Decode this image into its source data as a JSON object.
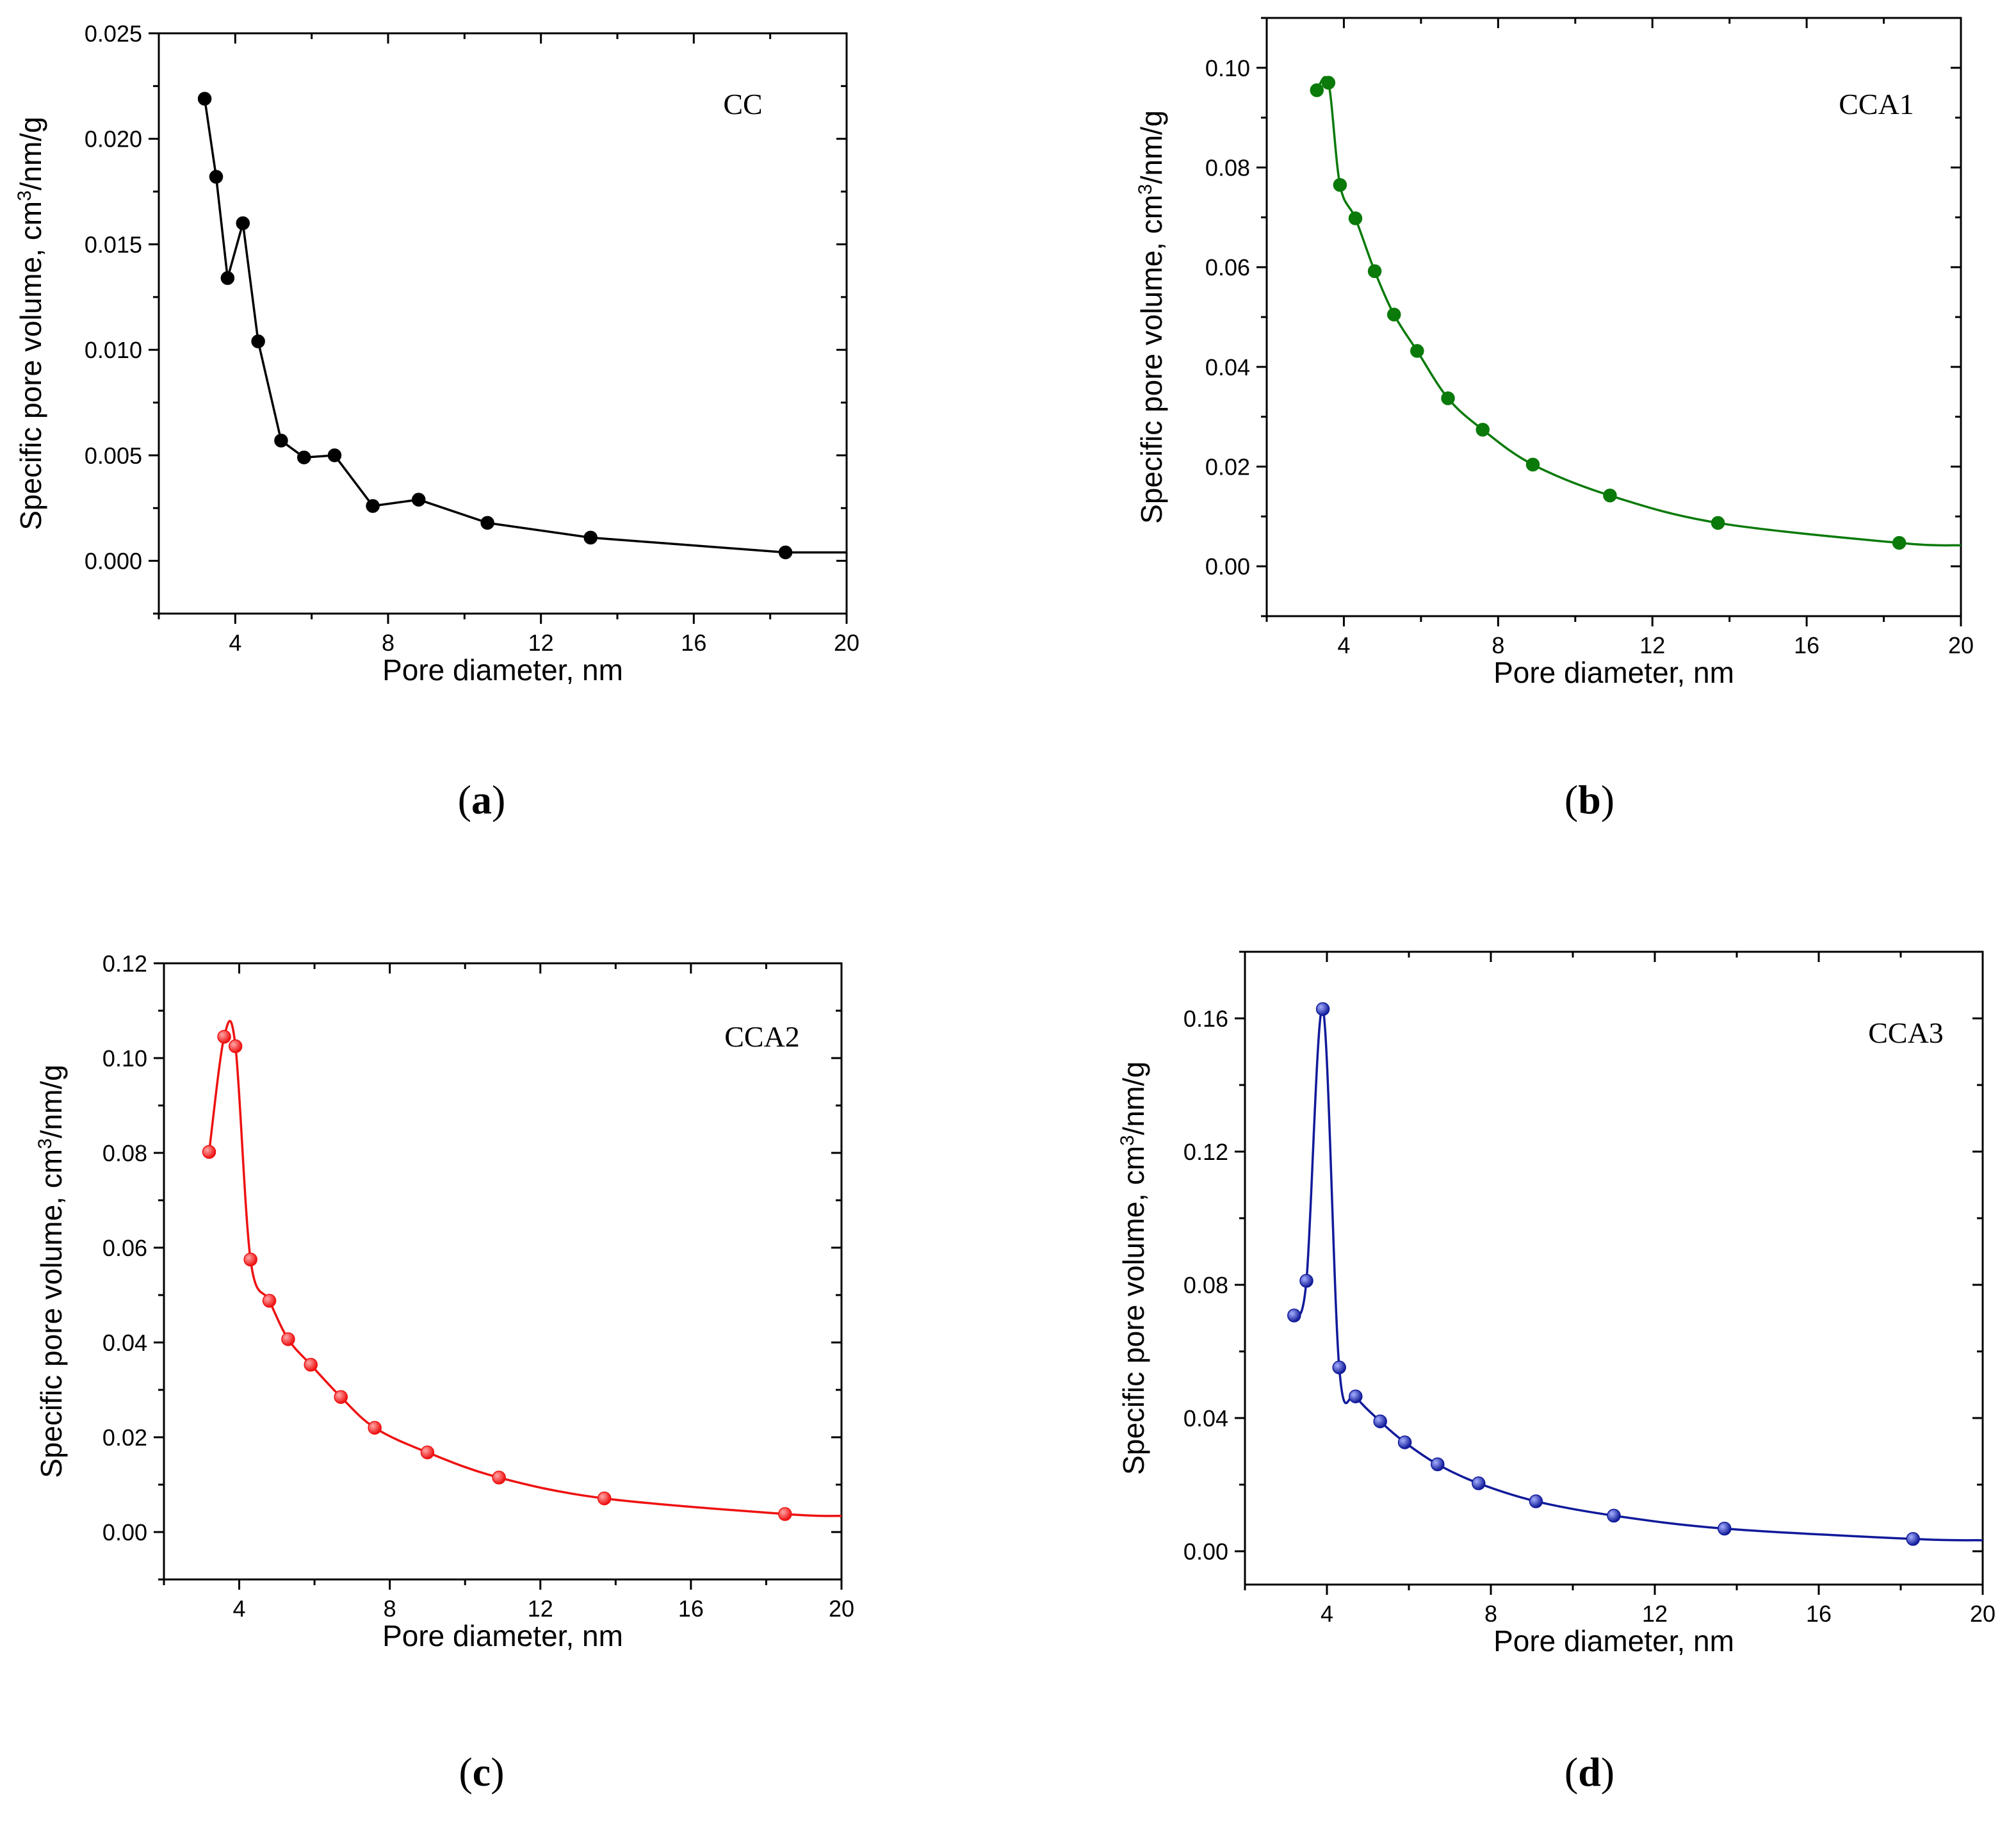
{
  "chart_data": [
    {
      "id": "a",
      "type": "line",
      "panel_label": "a",
      "inner_label": "CC",
      "xlabel": "Pore diameter, nm",
      "ylabel": "Specific pore volume, cm³/nm/g",
      "xlim": [
        2,
        20
      ],
      "ylim": [
        -0.0025,
        0.025
      ],
      "xticks": [
        4,
        8,
        12,
        16,
        20
      ],
      "yticks": [
        0.0,
        0.005,
        0.01,
        0.015,
        0.02,
        0.025
      ],
      "ytick_labels": [
        "0.000",
        "0.005",
        "0.010",
        "0.015",
        "0.020",
        "0.025"
      ],
      "color": "#000000",
      "series": [
        {
          "name": "CC",
          "x": [
            3.2,
            3.5,
            3.8,
            4.2,
            4.6,
            5.2,
            5.8,
            6.6,
            7.6,
            8.8,
            10.6,
            13.3,
            18.4
          ],
          "y": [
            0.0219,
            0.0182,
            0.0134,
            0.016,
            0.0104,
            0.0057,
            0.0049,
            0.005,
            0.0026,
            0.0029,
            0.0018,
            0.0011,
            0.0004
          ],
          "line_end": [
            20,
            0.0004
          ]
        }
      ]
    },
    {
      "id": "b",
      "type": "line",
      "panel_label": "b",
      "inner_label": "CCA1",
      "xlabel": "Pore diameter, nm",
      "ylabel": "Specific pore volume, cm³/nm/g",
      "xlim": [
        2,
        20
      ],
      "ylim": [
        -0.01,
        0.11
      ],
      "xticks": [
        4,
        8,
        12,
        16,
        20
      ],
      "yticks": [
        0.0,
        0.02,
        0.04,
        0.06,
        0.08,
        0.1
      ],
      "ytick_labels": [
        "0.00",
        "0.02",
        "0.04",
        "0.06",
        "0.08",
        "0.10"
      ],
      "color": "#0a7a0a",
      "series": [
        {
          "name": "CCA1",
          "x": [
            3.3,
            3.6,
            3.9,
            4.3,
            4.8,
            5.3,
            5.9,
            6.7,
            7.6,
            8.9,
            10.9,
            13.7,
            18.4
          ],
          "y": [
            0.0955,
            0.097,
            0.0765,
            0.0698,
            0.0592,
            0.0505,
            0.0432,
            0.0337,
            0.0274,
            0.0204,
            0.0142,
            0.0087,
            0.0047
          ],
          "line_end": [
            20,
            0.0042
          ]
        }
      ]
    },
    {
      "id": "c",
      "type": "line",
      "panel_label": "c",
      "inner_label": "CCA2",
      "xlabel": "Pore diameter, nm",
      "ylabel": "Specific pore volume, cm³/nm/g",
      "xlim": [
        2,
        20
      ],
      "ylim": [
        -0.01,
        0.12
      ],
      "xticks": [
        4,
        8,
        12,
        16,
        20
      ],
      "yticks": [
        0.0,
        0.02,
        0.04,
        0.06,
        0.08,
        0.1,
        0.12
      ],
      "ytick_labels": [
        "0.00",
        "0.02",
        "0.04",
        "0.06",
        "0.08",
        "0.10",
        "0.12"
      ],
      "color": "#ee1111",
      "series": [
        {
          "name": "CCA2",
          "x": [
            3.2,
            3.6,
            3.9,
            4.3,
            4.8,
            5.3,
            5.9,
            6.7,
            7.6,
            9.0,
            10.9,
            13.7,
            18.5
          ],
          "y": [
            0.0802,
            0.1045,
            0.1025,
            0.0575,
            0.0488,
            0.0407,
            0.0353,
            0.0285,
            0.022,
            0.0168,
            0.0115,
            0.0071,
            0.0038
          ],
          "line_end": [
            20,
            0.0034
          ]
        }
      ]
    },
    {
      "id": "d",
      "type": "line",
      "panel_label": "d",
      "inner_label": "CCA3",
      "xlabel": "Pore diameter, nm",
      "ylabel": "Specific pore volume, cm³/nm/g",
      "xlim": [
        2,
        20
      ],
      "ylim": [
        -0.01,
        0.18
      ],
      "xticks": [
        4,
        8,
        12,
        16,
        20
      ],
      "yticks": [
        0.0,
        0.04,
        0.08,
        0.12,
        0.16
      ],
      "ytick_labels": [
        "0.00",
        "0.04",
        "0.08",
        "0.12",
        "0.16"
      ],
      "color": "#101a99",
      "series": [
        {
          "name": "CCA3",
          "x": [
            3.2,
            3.5,
            3.9,
            4.3,
            4.7,
            5.3,
            5.9,
            6.7,
            7.7,
            9.1,
            11.0,
            13.7,
            18.3
          ],
          "y": [
            0.0708,
            0.0812,
            0.1628,
            0.0552,
            0.0465,
            0.039,
            0.0327,
            0.0261,
            0.0204,
            0.015,
            0.0107,
            0.0068,
            0.0037
          ],
          "line_end": [
            20,
            0.0033
          ]
        }
      ]
    }
  ]
}
